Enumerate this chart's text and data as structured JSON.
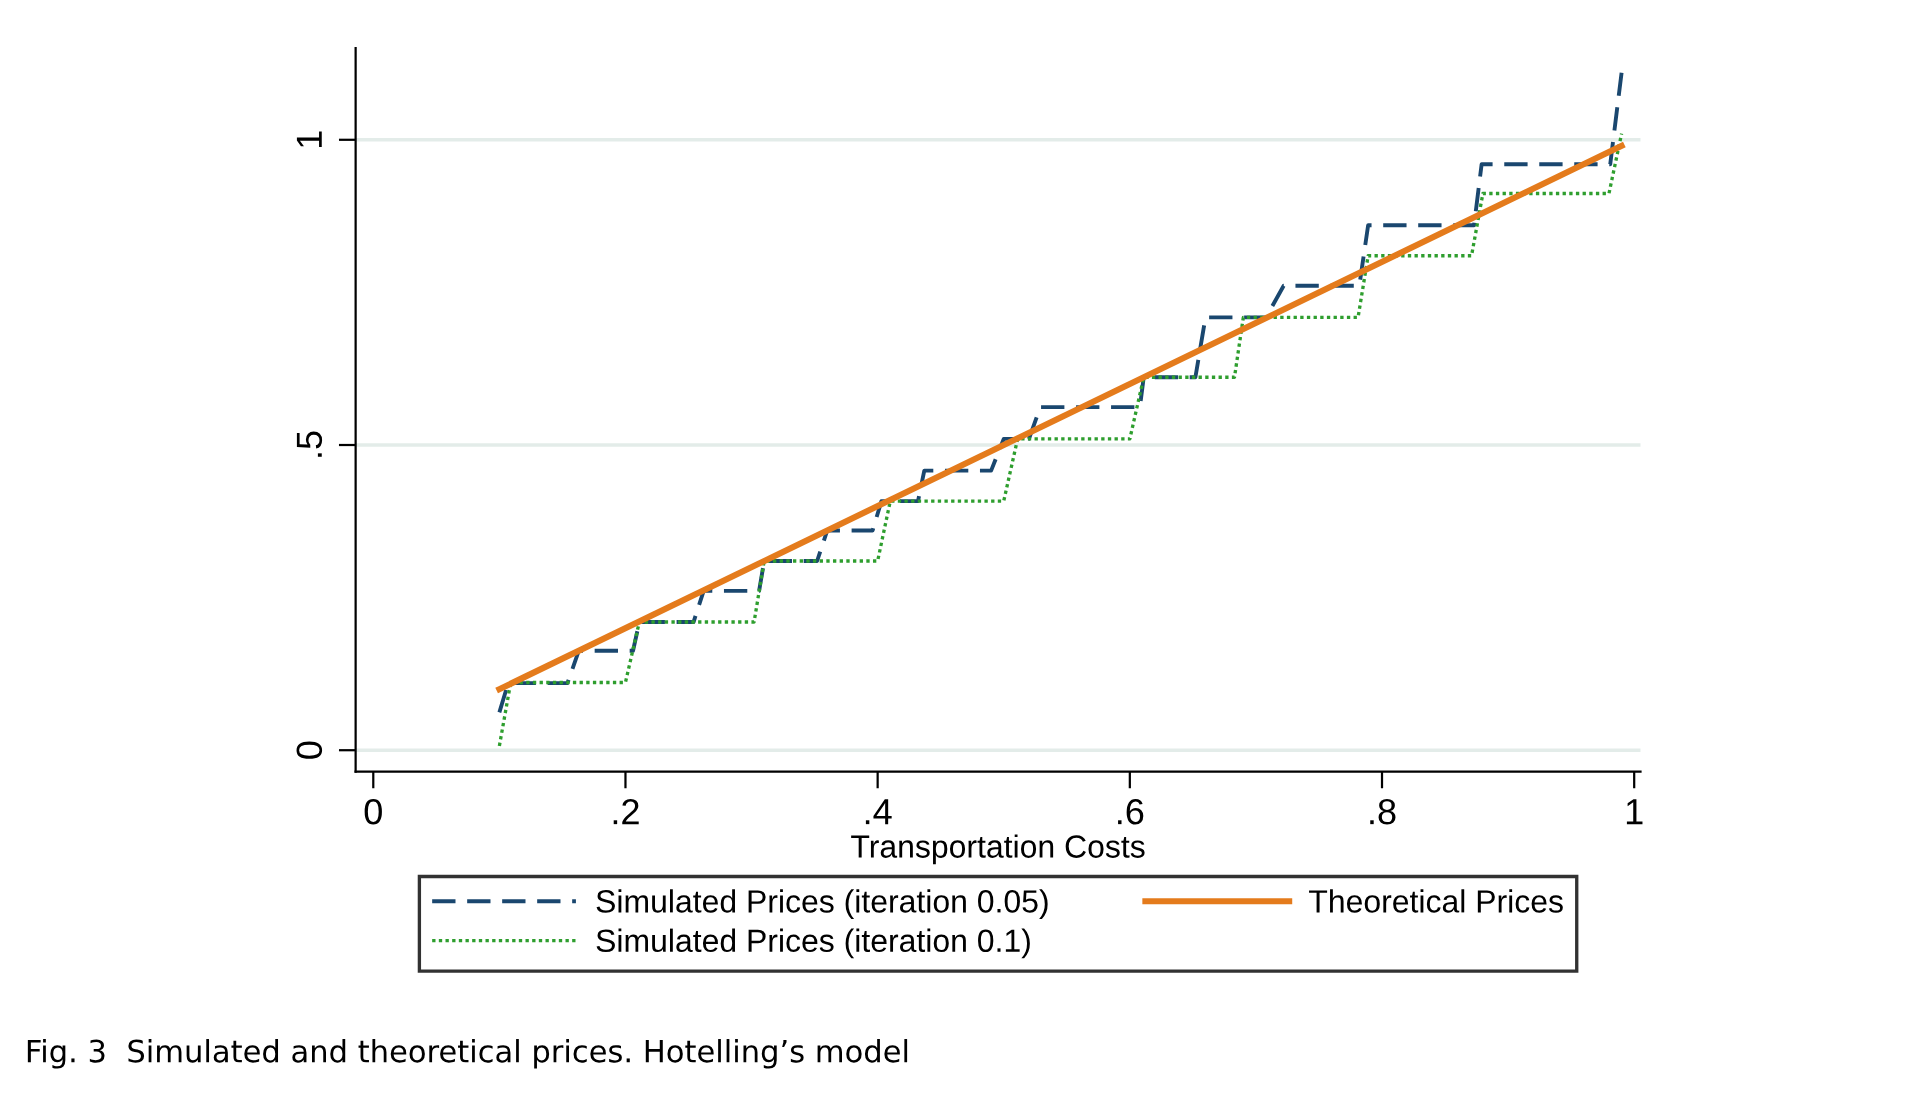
{
  "chart_data": {
    "type": "line",
    "xlabel": "Transportation Costs",
    "xlim": [
      -0.014,
      1.005
    ],
    "ylim": [
      -0.035,
      1.15
    ],
    "xticks": [
      {
        "value": 0,
        "label": "0"
      },
      {
        "value": 0.2,
        "label": ".2"
      },
      {
        "value": 0.4,
        "label": ".4"
      },
      {
        "value": 0.6,
        "label": ".6"
      },
      {
        "value": 0.8,
        "label": ".8"
      },
      {
        "value": 1,
        "label": "1"
      }
    ],
    "yticks": [
      {
        "value": 0,
        "label": "0"
      },
      {
        "value": 0.5,
        "label": ".5"
      },
      {
        "value": 1,
        "label": "1"
      }
    ],
    "grid": "y",
    "legend": "bottom",
    "marker": "none",
    "series": [
      {
        "name": "Simulated Prices (iteration 0.05)",
        "color": "#1a476f",
        "line_style": "dashed",
        "x": [
          0.1,
          0.107,
          0.154,
          0.163,
          0.206,
          0.211,
          0.254,
          0.262,
          0.306,
          0.31,
          0.352,
          0.36,
          0.396,
          0.403,
          0.432,
          0.437,
          0.49,
          0.5,
          0.52,
          0.529,
          0.608,
          0.611,
          0.652,
          0.66,
          0.708,
          0.722,
          0.782,
          0.789,
          0.873,
          0.879,
          0.981,
          0.99
        ],
        "values": [
          0.062,
          0.11,
          0.11,
          0.163,
          0.163,
          0.21,
          0.21,
          0.261,
          0.261,
          0.31,
          0.31,
          0.36,
          0.36,
          0.408,
          0.408,
          0.458,
          0.458,
          0.51,
          0.51,
          0.562,
          0.562,
          0.611,
          0.611,
          0.709,
          0.709,
          0.761,
          0.761,
          0.86,
          0.86,
          0.96,
          0.96,
          1.11
        ]
      },
      {
        "name": "Simulated Prices (iteration 0.1)",
        "color": "#2e9e2e",
        "line_style": "dotted",
        "x": [
          0.1,
          0.109,
          0.2,
          0.211,
          0.302,
          0.31,
          0.4,
          0.41,
          0.5,
          0.511,
          0.6,
          0.611,
          0.683,
          0.69,
          0.781,
          0.789,
          0.871,
          0.88,
          0.98,
          0.99
        ],
        "values": [
          0.007,
          0.111,
          0.111,
          0.21,
          0.21,
          0.31,
          0.31,
          0.408,
          0.408,
          0.51,
          0.51,
          0.611,
          0.611,
          0.709,
          0.709,
          0.81,
          0.81,
          0.912,
          0.912,
          1.01
        ]
      },
      {
        "name": "Theoretical Prices",
        "color": "#e47b1c",
        "line_style": "solid",
        "x": [
          0.1,
          0.99
        ],
        "values": [
          0.1,
          0.99
        ]
      }
    ],
    "annotations": [
      "Fig. 3  Simulated and theoretical prices. Hotelling’s model"
    ]
  }
}
